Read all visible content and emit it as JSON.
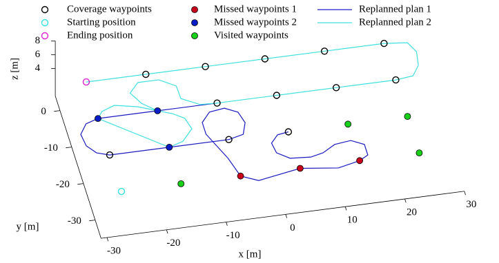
{
  "chart_data": {
    "type": "plot3d",
    "xlabel": "x [m]",
    "ylabel": "y [m]",
    "zlabel": "z [m]",
    "xlim": [
      -31,
      30
    ],
    "ylim": [
      -35,
      4
    ],
    "zlim": [
      0,
      8
    ],
    "xticks": [
      -30,
      -20,
      -10,
      0,
      10,
      20,
      30
    ],
    "yticks": [
      -30,
      -20,
      -10,
      0
    ],
    "zticks": [
      4,
      6,
      8
    ],
    "series": [
      {
        "name": "Coverage waypoints",
        "style": "hollow",
        "color": "#000000",
        "x": [
          -16,
          -6,
          4,
          14,
          24,
          -6,
          4,
          14,
          24,
          -26,
          -6,
          4
        ],
        "y": [
          3,
          3,
          3,
          3,
          3,
          -7,
          -7,
          -7,
          -7,
          -17,
          -17,
          -17
        ],
        "z": [
          2,
          2,
          2,
          2,
          2,
          2,
          2,
          2,
          2,
          2,
          2,
          2
        ]
      },
      {
        "name": "Starting position",
        "style": "hollow",
        "color": "#33e0e0",
        "x": [
          -26
        ],
        "y": [
          -27
        ],
        "z": [
          2
        ]
      },
      {
        "name": "Ending position",
        "style": "hollow",
        "color": "#e020d0",
        "x": [
          -26
        ],
        "y": [
          3
        ],
        "z": [
          2
        ]
      },
      {
        "name": "Missed waypoints 1",
        "style": "filled",
        "color": "#c8001a",
        "x": [
          -6,
          4,
          14
        ],
        "y": [
          -27,
          -27,
          -27
        ],
        "z": [
          2,
          2,
          2
        ]
      },
      {
        "name": "Missed waypoints 2",
        "style": "filled",
        "color": "#0a1ec8",
        "x": [
          -26,
          -16,
          -16
        ],
        "y": [
          -7,
          -7,
          -17
        ],
        "z": [
          2,
          2,
          2
        ]
      },
      {
        "name": "Visited waypoints",
        "style": "filled",
        "color": "#18d018",
        "x": [
          14,
          24,
          24,
          -16
        ],
        "y": [
          -17,
          -17,
          -27,
          -27
        ],
        "z": [
          2,
          2,
          2,
          2
        ]
      },
      {
        "name": "Replanned plan 1",
        "style": "line",
        "color": "#1a1ac0",
        "x": [
          -6,
          -16,
          -26,
          -28.2,
          -29.6,
          -29.3,
          -28,
          -26,
          -16,
          -6,
          -3.4,
          -2.5,
          -3.1,
          -5.1,
          -7.7,
          -9.4,
          -9.4,
          -7.1,
          -6,
          -3.3,
          4,
          10.2,
          14,
          15.6,
          15.6,
          13.6,
          10.8,
          8.5,
          6.3,
          2.9,
          1,
          0.7,
          2.1,
          4
        ],
        "y": [
          -7,
          -7,
          -7,
          -8,
          -10.6,
          -13.8,
          -16,
          -17,
          -17,
          -17,
          -16.1,
          -13.1,
          -10.1,
          -8.6,
          -9.1,
          -11.6,
          -14.8,
          -21.9,
          -27,
          -28.8,
          -27,
          -28.2,
          -27,
          -25.8,
          -22.9,
          -21.4,
          -21.9,
          -23.7,
          -24.4,
          -24,
          -22.1,
          -19.4,
          -17.4,
          -17
        ],
        "z": [
          2,
          2,
          2,
          2,
          2,
          2,
          2,
          2,
          2,
          2,
          2,
          2,
          2,
          2,
          2,
          2,
          2,
          2,
          2,
          2,
          2,
          2,
          2,
          2,
          2,
          2,
          2,
          2,
          2,
          2,
          2,
          2,
          2,
          2
        ]
      },
      {
        "name": "Replanned plan 2",
        "style": "line",
        "color": "#40e0e0",
        "x": [
          -26,
          -16,
          -6,
          4,
          14,
          24,
          27.8,
          28.8,
          28.4,
          27,
          24,
          14,
          4,
          -6,
          -8.8,
          -11.6,
          -11.7,
          -14.2,
          -17.7,
          -19.5,
          -18.2,
          -16,
          -18.9,
          -22.7,
          -25,
          -26,
          -16,
          -13.5,
          -11.4,
          -12,
          -13.7,
          -16
        ],
        "y": [
          3,
          3,
          3,
          3,
          3,
          3,
          2.4,
          -0.3,
          -3.9,
          -6.5,
          -7,
          -7,
          -7,
          -7,
          -6.8,
          -4.6,
          -1.1,
          1.1,
          1.1,
          -1.4,
          -4.5,
          -7,
          -5.3,
          -4.1,
          -5.3,
          -7,
          -17,
          -15.9,
          -12.9,
          -9.9,
          -8.3,
          -7
        ],
        "z": [
          2,
          2,
          2,
          2,
          2,
          2,
          2,
          2,
          2,
          2,
          2,
          2,
          2,
          2,
          2,
          2,
          2,
          2,
          2,
          2,
          2,
          2,
          2,
          2,
          2,
          2,
          2,
          2,
          2,
          2,
          2,
          2
        ]
      }
    ]
  }
}
